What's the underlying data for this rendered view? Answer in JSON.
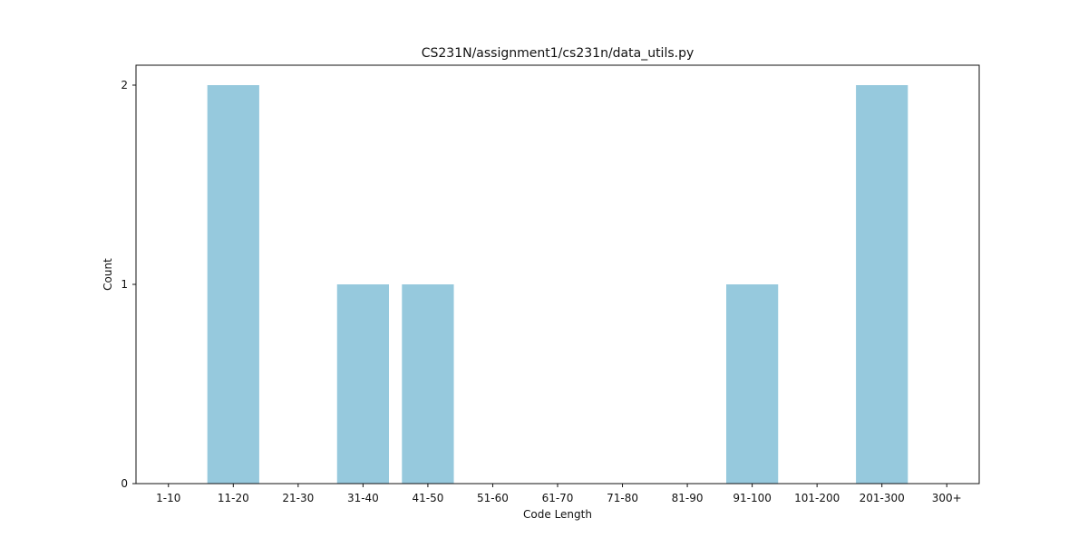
{
  "chart_data": {
    "type": "bar",
    "title": "CS231N/assignment1/cs231n/data_utils.py",
    "xlabel": "Code Length",
    "ylabel": "Count",
    "categories": [
      "1-10",
      "11-20",
      "21-30",
      "31-40",
      "41-50",
      "51-60",
      "61-70",
      "71-80",
      "81-90",
      "91-100",
      "101-200",
      "201-300",
      "300+"
    ],
    "values": [
      0,
      2,
      0,
      1,
      1,
      0,
      0,
      0,
      0,
      1,
      0,
      2,
      0
    ],
    "ylim": [
      0,
      2.1
    ],
    "yticks": [
      0,
      1,
      2
    ],
    "grid": false,
    "legend": "none",
    "bar_color": "#96c9dd"
  }
}
